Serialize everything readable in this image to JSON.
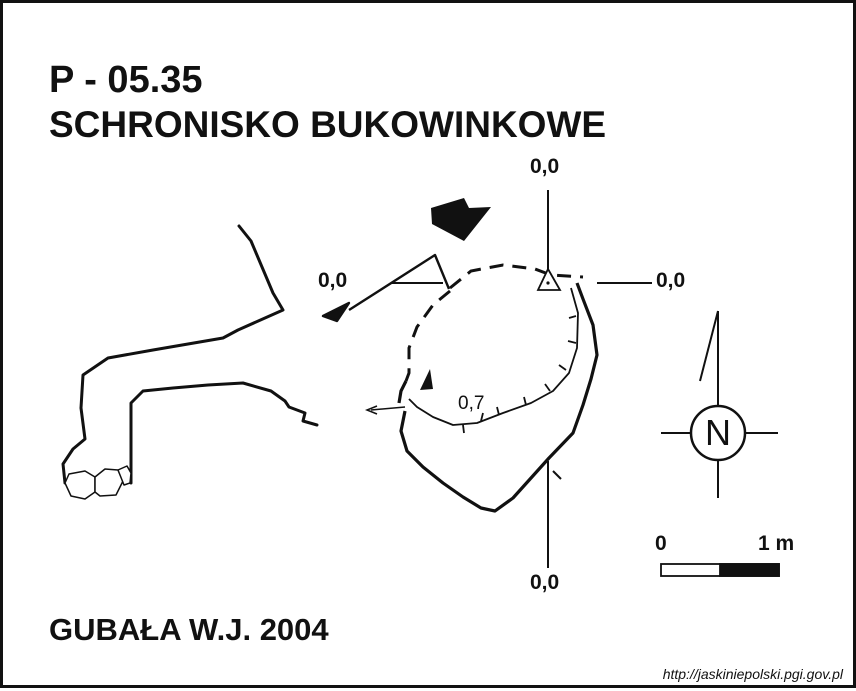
{
  "map": {
    "survey_code": "P - 05.35",
    "cave_name": "SCHRONISKO BUKOWINKOWE",
    "author_year": "GUBAŁA W.J. 2004",
    "source_url": "http://jaskiniepolski.pgi.gov.pl"
  },
  "elevations": {
    "top": "0,0",
    "left": "0,0",
    "right": "0,0",
    "bottom": "0,0",
    "interior": "0,7"
  },
  "scale_bar": {
    "start_label": "0",
    "end_label": "1 m"
  },
  "north_arrow": {
    "letter": "N"
  },
  "icons": {
    "entrance": "entrance-arrow-icon",
    "survey_datum": "survey-datum-triangle-icon",
    "north": "north-arrow-icon"
  },
  "colors": {
    "line": "#111111",
    "background": "#ffffff"
  }
}
